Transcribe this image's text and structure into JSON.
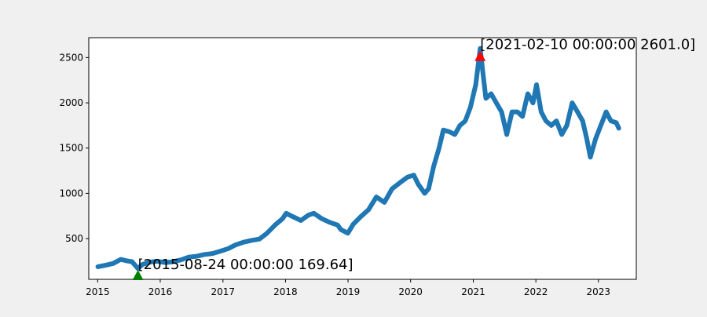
{
  "chart_data": {
    "type": "line",
    "title": "",
    "xlabel": "",
    "ylabel": "",
    "xlim": [
      "2014-11-10",
      "2023-08-10"
    ],
    "ylim": [
      50,
      2720
    ],
    "x_ticks": [
      {
        "date": "2015-01-01",
        "label": "2015"
      },
      {
        "date": "2016-01-01",
        "label": "2016"
      },
      {
        "date": "2017-01-01",
        "label": "2017"
      },
      {
        "date": "2018-01-01",
        "label": "2018"
      },
      {
        "date": "2019-01-01",
        "label": "2019"
      },
      {
        "date": "2020-01-01",
        "label": "2020"
      },
      {
        "date": "2021-01-01",
        "label": "2021"
      },
      {
        "date": "2022-01-01",
        "label": "2022"
      },
      {
        "date": "2023-01-01",
        "label": "2023"
      }
    ],
    "y_ticks": [
      500,
      1000,
      1500,
      2000,
      2500
    ],
    "grid": false,
    "line_color": "#1f77b4",
    "series": [
      {
        "x": [
          "2015-01-02",
          "2015-02-15",
          "2015-04-01",
          "2015-05-15",
          "2015-06-20",
          "2015-07-20",
          "2015-08-24",
          "2015-09-20",
          "2015-11-01",
          "2015-12-15",
          "2016-02-01",
          "2016-03-15",
          "2016-05-01",
          "2016-06-15",
          "2016-08-01",
          "2016-09-15",
          "2016-11-01",
          "2016-12-15",
          "2017-02-01",
          "2017-03-15",
          "2017-05-01",
          "2017-06-15",
          "2017-08-01",
          "2017-09-15",
          "2017-11-01",
          "2017-12-15",
          "2018-01-05",
          "2018-02-15",
          "2018-04-01",
          "2018-05-15",
          "2018-06-15",
          "2018-08-01",
          "2018-09-15",
          "2018-11-01",
          "2018-11-20",
          "2018-12-31",
          "2019-02-01",
          "2019-03-15",
          "2019-05-01",
          "2019-06-15",
          "2019-08-01",
          "2019-09-15",
          "2019-11-01",
          "2019-12-15",
          "2020-01-20",
          "2020-02-15",
          "2020-03-23",
          "2020-04-15",
          "2020-05-15",
          "2020-06-15",
          "2020-07-10",
          "2020-08-15",
          "2020-09-15",
          "2020-10-15",
          "2020-11-15",
          "2020-12-15",
          "2021-01-15",
          "2021-02-10",
          "2021-02-25",
          "2021-03-15",
          "2021-04-15",
          "2021-05-15",
          "2021-06-15",
          "2021-07-15",
          "2021-08-15",
          "2021-09-15",
          "2021-10-15",
          "2021-11-15",
          "2021-12-15",
          "2022-01-05",
          "2022-02-01",
          "2022-03-01",
          "2022-04-01",
          "2022-05-01",
          "2022-06-01",
          "2022-07-01",
          "2022-08-01",
          "2022-09-01",
          "2022-10-01",
          "2022-10-25",
          "2022-11-15",
          "2022-12-15",
          "2023-01-15",
          "2023-02-15",
          "2023-03-15",
          "2023-04-15",
          "2023-04-30"
        ],
        "y": [
          190,
          205,
          225,
          270,
          255,
          245,
          169.64,
          215,
          240,
          250,
          235,
          245,
          265,
          295,
          305,
          325,
          335,
          360,
          390,
          430,
          460,
          480,
          495,
          560,
          650,
          720,
          780,
          740,
          700,
          760,
          780,
          720,
          680,
          650,
          600,
          560,
          660,
          740,
          820,
          960,
          900,
          1050,
          1120,
          1180,
          1200,
          1100,
          1000,
          1050,
          1300,
          1500,
          1700,
          1680,
          1650,
          1750,
          1800,
          1950,
          2200,
          2601.0,
          2350,
          2050,
          2100,
          2000,
          1900,
          1650,
          1900,
          1900,
          1850,
          2100,
          2000,
          2200,
          1900,
          1800,
          1750,
          1800,
          1650,
          1750,
          2000,
          1900,
          1800,
          1600,
          1400,
          1600,
          1750,
          1900,
          1800,
          1780,
          1720
        ]
      }
    ],
    "annotations": [
      {
        "x": "2021-02-10",
        "y": 2601.0,
        "text": "[2021-02-10 00:00:00 2601.0]",
        "marker": "triangle-up",
        "color": "#ff0000"
      },
      {
        "x": "2015-08-24",
        "y": 169.64,
        "text": "[2015-08-24 00:00:00 169.64]",
        "marker": "triangle-up",
        "color": "#008000"
      }
    ]
  }
}
